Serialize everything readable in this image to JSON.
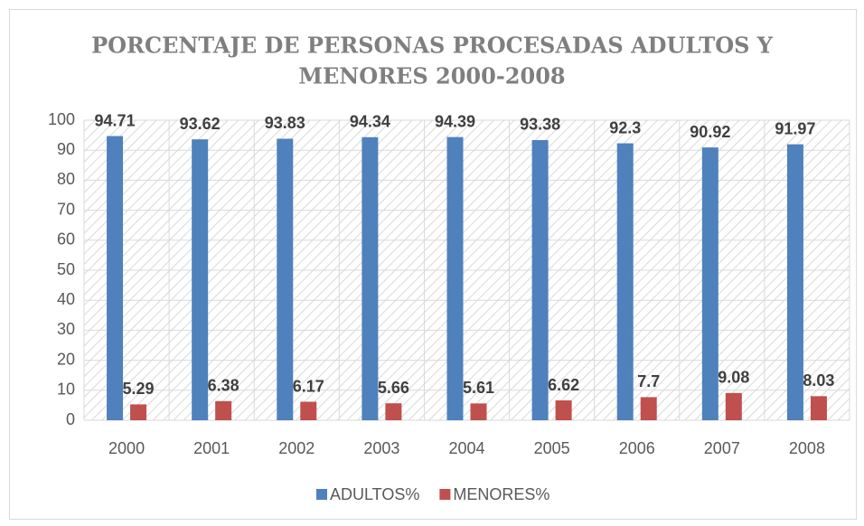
{
  "chart_data": {
    "type": "bar",
    "title": [
      "PORCENTAJE DE PERSONAS PROCESADAS ADULTOS Y",
      "MENORES 2000-2008"
    ],
    "categories": [
      "2000",
      "2001",
      "2002",
      "2003",
      "2004",
      "2005",
      "2006",
      "2007",
      "2008"
    ],
    "series": [
      {
        "name": "ADULTOS%",
        "color": "#4f81bd",
        "values": [
          94.71,
          93.62,
          93.83,
          94.34,
          94.39,
          93.38,
          92.3,
          90.92,
          91.97
        ]
      },
      {
        "name": "MENORES%",
        "color": "#c0504d",
        "values": [
          5.29,
          6.38,
          6.17,
          5.66,
          5.61,
          6.62,
          7.7,
          9.08,
          8.03
        ]
      }
    ],
    "ylim": [
      0,
      100
    ],
    "yticks": [
      0,
      10,
      20,
      30,
      40,
      50,
      60,
      70,
      80,
      90,
      100
    ],
    "grid": true,
    "legend": "bottom"
  }
}
